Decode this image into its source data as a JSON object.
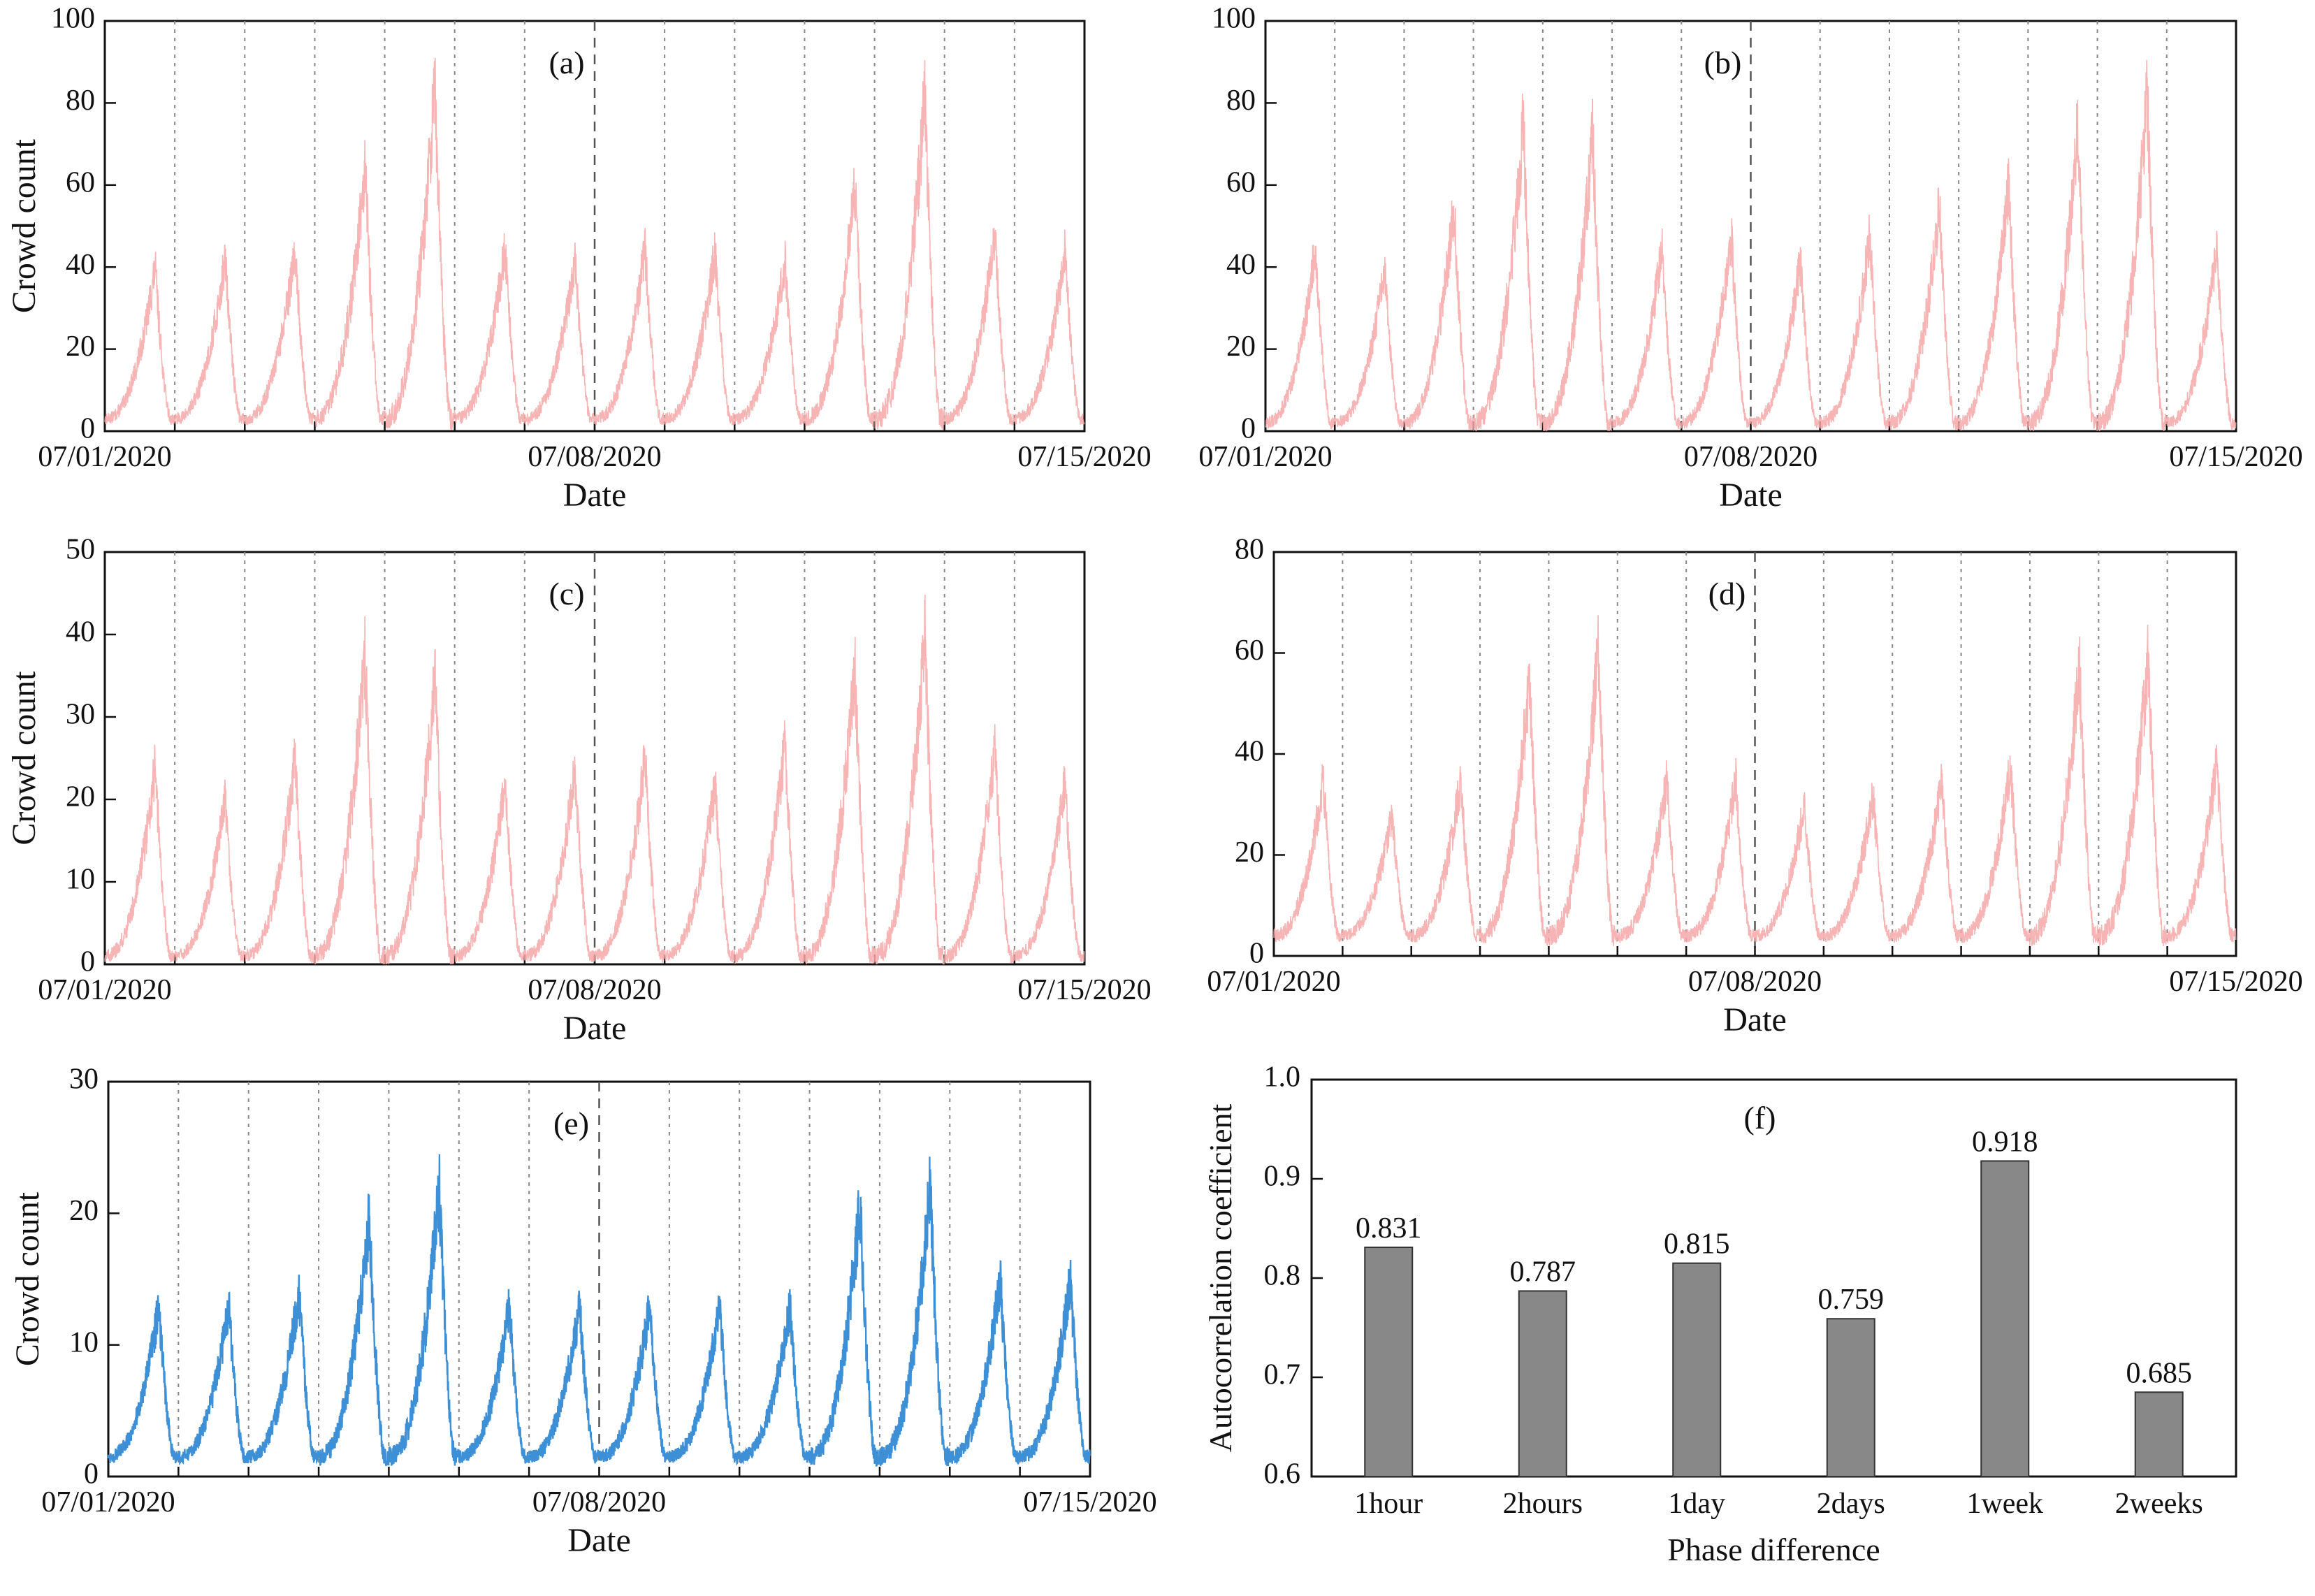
{
  "chart_data": [
    {
      "panel": "(a)",
      "type": "line",
      "ylabel": "Crowd count",
      "xlabel": "Date",
      "ylim": [
        0,
        100
      ],
      "yticks": [
        0,
        20,
        40,
        60,
        80,
        100
      ],
      "x_tick_labels": [
        "07/01/2020",
        "07/08/2020",
        "07/15/2020"
      ],
      "x_range_days": [
        0,
        14
      ],
      "color": "#f4a7a7",
      "series": [
        {
          "daily_peaks": [
            40,
            42,
            44,
            65,
            85,
            45,
            42,
            45,
            44,
            42,
            60,
            82,
            48,
            44
          ],
          "daily_min": 3
        }
      ]
    },
    {
      "panel": "(b)",
      "type": "line",
      "ylabel": "",
      "xlabel": "Date",
      "ylim": [
        0,
        100
      ],
      "yticks": [
        0,
        20,
        40,
        60,
        80,
        100
      ],
      "x_tick_labels": [
        "07/01/2020",
        "07/08/2020",
        "07/15/2020"
      ],
      "x_range_days": [
        0,
        14
      ],
      "color": "#f4a7a7",
      "series": [
        {
          "daily_peaks": [
            45,
            40,
            55,
            75,
            72,
            45,
            48,
            42,
            48,
            55,
            60,
            75,
            82,
            44
          ],
          "daily_min": 2
        }
      ]
    },
    {
      "panel": "(c)",
      "type": "line",
      "ylabel": "Crowd count",
      "xlabel": "Date",
      "ylim": [
        0,
        50
      ],
      "yticks": [
        0,
        10,
        20,
        30,
        40,
        50
      ],
      "x_tick_labels": [
        "07/01/2020",
        "07/08/2020",
        "07/15/2020"
      ],
      "x_range_days": [
        0,
        14
      ],
      "color": "#f4a7a7",
      "series": [
        {
          "daily_peaks": [
            24,
            20,
            25,
            38,
            35,
            22,
            24,
            25,
            22,
            27,
            36,
            40,
            26,
            22
          ],
          "daily_min": 1
        }
      ]
    },
    {
      "panel": "(d)",
      "type": "line",
      "ylabel": "",
      "xlabel": "Date",
      "ylim": [
        0,
        80
      ],
      "yticks": [
        0,
        20,
        40,
        60,
        80
      ],
      "x_tick_labels": [
        "07/01/2020",
        "07/08/2020",
        "07/15/2020"
      ],
      "x_range_days": [
        0,
        14
      ],
      "color": "#f4a7a7",
      "series": [
        {
          "daily_peaks": [
            35,
            28,
            35,
            55,
            60,
            35,
            35,
            30,
            32,
            35,
            38,
            58,
            60,
            38
          ],
          "daily_min": 4
        }
      ]
    },
    {
      "panel": "(e)",
      "type": "line",
      "ylabel": "Crowd count",
      "xlabel": "Date",
      "ylim": [
        0,
        30
      ],
      "yticks": [
        0,
        10,
        20,
        30
      ],
      "x_tick_labels": [
        "07/01/2020",
        "07/08/2020",
        "07/15/2020"
      ],
      "x_range_days": [
        0,
        14
      ],
      "color": "#3d8fd6",
      "series": [
        {
          "daily_peaks": [
            13,
            13,
            14,
            20,
            22,
            13,
            13,
            13,
            13,
            13,
            21,
            22,
            15,
            15
          ],
          "daily_min": 1.5
        }
      ]
    },
    {
      "panel": "(f)",
      "type": "bar",
      "ylabel": "Autocorrelation coefficient",
      "xlabel": "Phase difference",
      "ylim": [
        0.6,
        1.0
      ],
      "yticks": [
        "0.6",
        "0.7",
        "0.8",
        "0.9",
        "1.0"
      ],
      "categories": [
        "1hour",
        "2hours",
        "1day",
        "2days",
        "1week",
        "2weeks"
      ],
      "values": [
        0.831,
        0.787,
        0.815,
        0.759,
        0.918,
        0.685
      ],
      "value_labels": [
        "0.831",
        "0.787",
        "0.815",
        "0.759",
        "0.918",
        "0.685"
      ],
      "color": "#888888"
    }
  ]
}
